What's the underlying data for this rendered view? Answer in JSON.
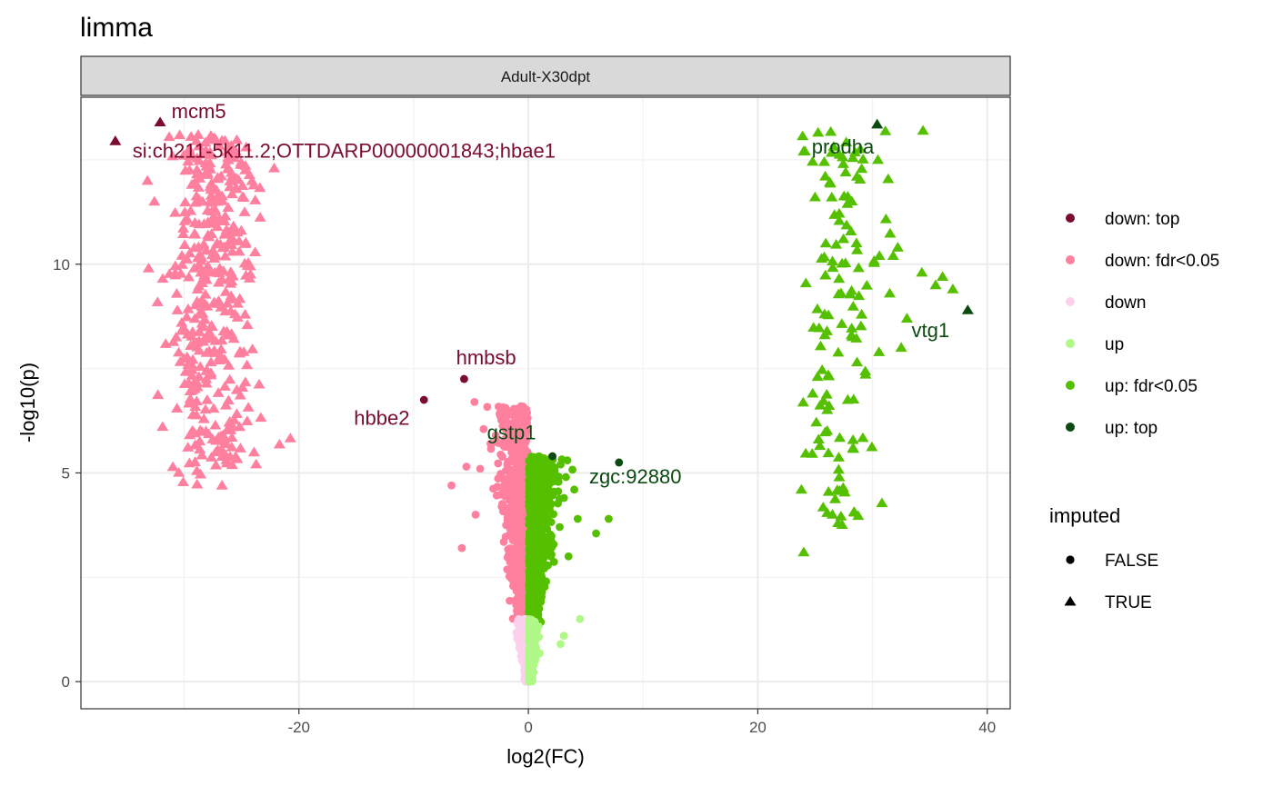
{
  "chart_data": {
    "type": "scatter",
    "title": "limma",
    "facet": "Adult-X30dpt",
    "xlabel": "log2(FC)",
    "ylabel": "-log10(p)",
    "xlim": [
      -39,
      42
    ],
    "ylim": [
      -0.65,
      14
    ],
    "x_ticks": [
      -20,
      0,
      20,
      40
    ],
    "y_ticks": [
      0,
      5,
      10
    ],
    "grid": true,
    "legend_position": "right",
    "colors": {
      "down: top": "#7b0c2e",
      "down: fdr<0.05": "#ff7f9f",
      "down": "#fdd0ec",
      "up": "#b0f888",
      "up: fdr<0.05": "#55c000",
      "up: top": "#0b4a10"
    },
    "legend_color": {
      "items": [
        {
          "key": "down: top",
          "label": "down: top",
          "color": "#7b0c2e"
        },
        {
          "key": "down: fdr<0.05",
          "label": "down: fdr<0.05",
          "color": "#ff7f9f"
        },
        {
          "key": "down",
          "label": "down",
          "color": "#fdd0ec"
        },
        {
          "key": "up",
          "label": "up",
          "color": "#b0f888"
        },
        {
          "key": "up: fdr<0.05",
          "label": "up: fdr<0.05",
          "color": "#55c000"
        },
        {
          "key": "up: top",
          "label": "up: top",
          "color": "#0b4a10"
        }
      ]
    },
    "legend_shape": {
      "title": "imputed",
      "items": [
        {
          "label": "FALSE",
          "shape": "circle"
        },
        {
          "label": "TRUE",
          "shape": "triangle"
        }
      ]
    },
    "top_points": [
      {
        "x": -36,
        "y": 12.95,
        "group": "down: top",
        "imputed": true
      },
      {
        "x": -32.1,
        "y": 13.4,
        "group": "down: top",
        "imputed": true
      },
      {
        "x": -5.6,
        "y": 7.25,
        "group": "down: top",
        "imputed": false
      },
      {
        "x": -9.1,
        "y": 6.75,
        "group": "down: top",
        "imputed": false
      },
      {
        "x": 2.1,
        "y": 5.4,
        "group": "up: top",
        "imputed": false
      },
      {
        "x": 7.9,
        "y": 5.25,
        "group": "up: top",
        "imputed": false
      },
      {
        "x": 30.4,
        "y": 13.35,
        "group": "up: top",
        "imputed": true
      },
      {
        "x": 38.3,
        "y": 8.9,
        "group": "up: top",
        "imputed": true
      }
    ],
    "annotations": [
      {
        "text": "mcm5",
        "x": -31.1,
        "y": 13.5,
        "color": "#7b0c2e"
      },
      {
        "text": "si:ch211-5k11.2;OTTDARP00000001843;hbae1",
        "x": -34.5,
        "y": 12.55,
        "color": "#7b0c2e"
      },
      {
        "text": "hmbsb",
        "x": -6.3,
        "y": 7.6,
        "color": "#7b0c2e"
      },
      {
        "text": "hbbe2",
        "x": -15.2,
        "y": 6.15,
        "color": "#7b0c2e"
      },
      {
        "text": "gstp1",
        "x": -3.6,
        "y": 5.8,
        "color": "#0b4a10"
      },
      {
        "text": "zgc:92880",
        "x": 5.3,
        "y": 4.75,
        "color": "#0b4a10"
      },
      {
        "text": "prodha",
        "x": 24.7,
        "y": 12.65,
        "color": "#0b4a10"
      },
      {
        "text": "vtg1",
        "x": 33.4,
        "y": 8.25,
        "color": "#0b4a10"
      }
    ],
    "clusters": [
      {
        "name": "left-imputed",
        "group": "down: fdr<0.05",
        "imputed": true,
        "count": 420,
        "x_center": -27.5,
        "x_spread": 1.9,
        "y_min": 4.7,
        "y_max": 13.1,
        "seed": 11
      },
      {
        "name": "right-imputed",
        "group": "up: fdr<0.05",
        "imputed": true,
        "count": 130,
        "x_center": 27.5,
        "x_spread": 1.6,
        "y_min": 3.1,
        "y_max": 13.2,
        "seed": 23
      },
      {
        "name": "center-down-sig",
        "group": "down: fdr<0.05",
        "imputed": false,
        "count": 900,
        "side": -1,
        "y_min": 1.4,
        "y_max": 6.6,
        "seed": 37
      },
      {
        "name": "center-up-sig",
        "group": "up: fdr<0.05",
        "imputed": false,
        "count": 900,
        "side": 1,
        "y_min": 1.4,
        "y_max": 5.4,
        "seed": 41
      },
      {
        "name": "center-down-ns",
        "group": "down",
        "imputed": false,
        "count": 380,
        "side": -1,
        "y_min": 0,
        "y_max": 1.5,
        "seed": 53
      },
      {
        "name": "center-up-ns",
        "group": "up",
        "imputed": false,
        "count": 380,
        "side": 1,
        "y_min": 0,
        "y_max": 1.5,
        "seed": 59
      }
    ]
  }
}
